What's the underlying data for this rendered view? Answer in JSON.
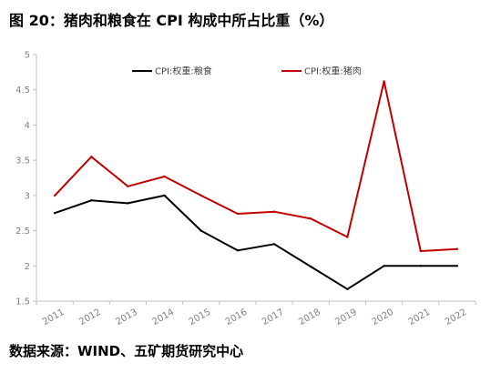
{
  "title": "图 20：猪肉和粮食在 CPI 构成中所占比重（%）",
  "source": "数据来源：WIND、五矿期货研究中心",
  "chart_data": {
    "type": "line",
    "title": "图 20：猪肉和粮食在 CPI 构成中所占比重（%）",
    "xlabel": "",
    "ylabel": "",
    "categories": [
      "2011",
      "2012",
      "2013",
      "2014",
      "2015",
      "2016",
      "2017",
      "2018",
      "2019",
      "2020",
      "2021",
      "2022"
    ],
    "ylim": [
      1.5,
      5
    ],
    "yticks": [
      "1.5",
      "2",
      "2.5",
      "3",
      "3.5",
      "4",
      "4.5",
      "5"
    ],
    "grid": false,
    "legend_position": "top",
    "series": [
      {
        "name": "CPI:权重:粮食",
        "color": "#000000",
        "values": [
          2.75,
          2.93,
          2.89,
          3.0,
          2.5,
          2.22,
          2.31,
          1.99,
          1.67,
          2.0,
          2.0,
          2.0
        ]
      },
      {
        "name": "CPI:权重:猪肉",
        "color": "#c00000",
        "values": [
          3.0,
          3.55,
          3.13,
          3.27,
          3.0,
          2.74,
          2.77,
          2.67,
          2.41,
          4.62,
          2.21,
          2.24
        ]
      }
    ]
  }
}
